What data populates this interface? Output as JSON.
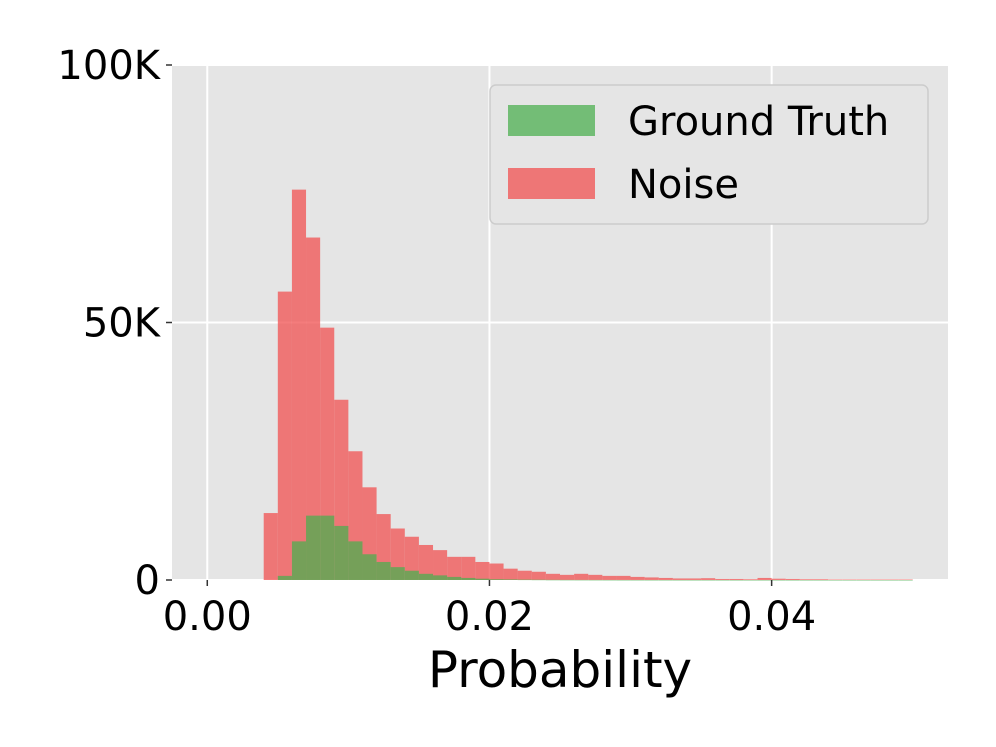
{
  "chart_data": {
    "type": "bar",
    "subtype": "histogram",
    "xlabel": "Probability",
    "ylabel": "",
    "xlim": [
      -0.0025,
      0.0525
    ],
    "ylim": [
      0,
      100000
    ],
    "x_ticks": [
      {
        "value": 0.0,
        "label": "0.00"
      },
      {
        "value": 0.02,
        "label": "0.02"
      },
      {
        "value": 0.04,
        "label": "0.04"
      }
    ],
    "y_ticks": [
      {
        "value": 0,
        "label": "0"
      },
      {
        "value": 50000,
        "label": "50K"
      },
      {
        "value": 100000,
        "label": "100K"
      }
    ],
    "grid": true,
    "legend_position": "top-right",
    "bin_start": 0.0,
    "bin_width": 0.001,
    "series": [
      {
        "name": "Ground Truth",
        "color": "#4caf50",
        "values": [
          0,
          0,
          0,
          0,
          0,
          800,
          7500,
          12500,
          12500,
          10500,
          7500,
          5000,
          3500,
          2500,
          1800,
          1200,
          900,
          600,
          400,
          250,
          150,
          120,
          80,
          60,
          40,
          30,
          25,
          20,
          15,
          10,
          10,
          8,
          6,
          5,
          4,
          3,
          3,
          2,
          2,
          2,
          1,
          1,
          1,
          1,
          1,
          1,
          1,
          1,
          1,
          1
        ]
      },
      {
        "name": "Noise",
        "color": "#f05050",
        "values": [
          0,
          0,
          0,
          0,
          13000,
          56000,
          75800,
          66500,
          49000,
          35000,
          25000,
          18000,
          12800,
          10000,
          8400,
          6800,
          5800,
          4500,
          4500,
          3500,
          3200,
          2200,
          1800,
          1600,
          1200,
          1000,
          1200,
          1000,
          800,
          800,
          600,
          500,
          400,
          300,
          300,
          350,
          200,
          200,
          150,
          400,
          250,
          200,
          150,
          150,
          100,
          100,
          100,
          100,
          100,
          100
        ]
      }
    ]
  }
}
